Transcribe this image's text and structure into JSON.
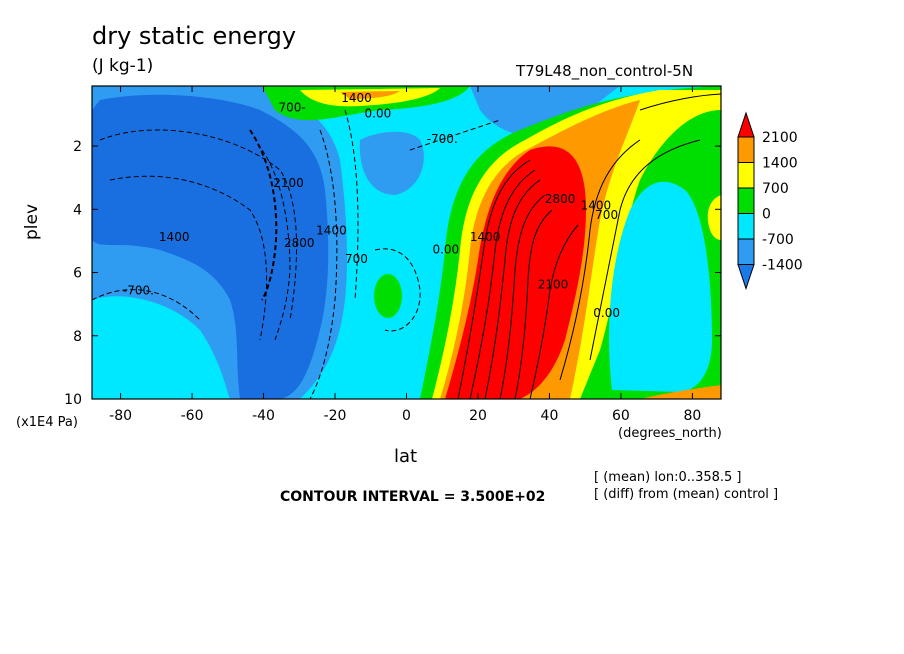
{
  "title": "dry static energy",
  "units": "(J kg-1)",
  "run_label": "T79L48_non_control-5N",
  "footer": {
    "interval": "CONTOUR INTERVAL = 3.500E+02",
    "note1": "[ (mean) lon:0..358.5 ]",
    "note2": "[ (diff) from (mean) control ]"
  },
  "colors": {
    "below_-1400": "#1a7be8",
    "-1400_-700": "#2f9cf2",
    "-700_0": "#00e8ff",
    "0_700": "#00dd00",
    "700_1400": "#ffff00",
    "1400_2100": "#ff9900",
    "above_2100": "#ff0000",
    "deep_blue": "#1f6fe0"
  },
  "chart_data": {
    "type": "heatmap",
    "xlabel": "lat",
    "xunits": "(degrees_north)",
    "ylabel": "plev",
    "yunits": "(x1E4 Pa)",
    "xlim": [
      -88,
      88
    ],
    "ylim": [
      10,
      0.1
    ],
    "xticks": [
      -80,
      -60,
      -40,
      -20,
      0,
      20,
      40,
      60,
      80
    ],
    "yticks": [
      2,
      4,
      6,
      8,
      10
    ],
    "colorbar": {
      "levels": [
        -1400,
        -700,
        0,
        700,
        1400,
        2100
      ],
      "labels": [
        "2100",
        "1400",
        "700",
        "0",
        "-700",
        "-1400"
      ],
      "colors": [
        "#1a7be8",
        "#2f9cf2",
        "#00e8ff",
        "#00dd00",
        "#ffff00",
        "#ff9900",
        "#ff0000"
      ]
    },
    "contour_interval": 350,
    "contour_labels": [
      {
        "text": "1400",
        "lat": -65,
        "plev": 5.0
      },
      {
        "text": "-700.",
        "lat": -75,
        "plev": 6.7
      },
      {
        "text": "2100",
        "lat": -33,
        "plev": 3.3
      },
      {
        "text": "2800",
        "lat": -30,
        "plev": 5.2
      },
      {
        "text": "1400",
        "lat": -21,
        "plev": 4.8
      },
      {
        "text": "700",
        "lat": -14,
        "plev": 5.7
      },
      {
        "text": "-700.",
        "lat": 10,
        "plev": 1.9
      },
      {
        "text": "700-",
        "lat": -32,
        "plev": 0.9
      },
      {
        "text": "1400",
        "lat": -14,
        "plev": 0.6
      },
      {
        "text": "0.00",
        "lat": -8,
        "plev": 1.1
      },
      {
        "text": "0.00",
        "lat": 11,
        "plev": 5.4
      },
      {
        "text": "1400",
        "lat": 22,
        "plev": 5.0
      },
      {
        "text": "2800",
        "lat": 43,
        "plev": 3.8
      },
      {
        "text": "2100",
        "lat": 41,
        "plev": 6.5
      },
      {
        "text": "1400",
        "lat": 53,
        "plev": 4.0
      },
      {
        "text": "700",
        "lat": 56,
        "plev": 4.3
      },
      {
        "text": "0.00",
        "lat": 56,
        "plev": 7.4
      }
    ]
  }
}
